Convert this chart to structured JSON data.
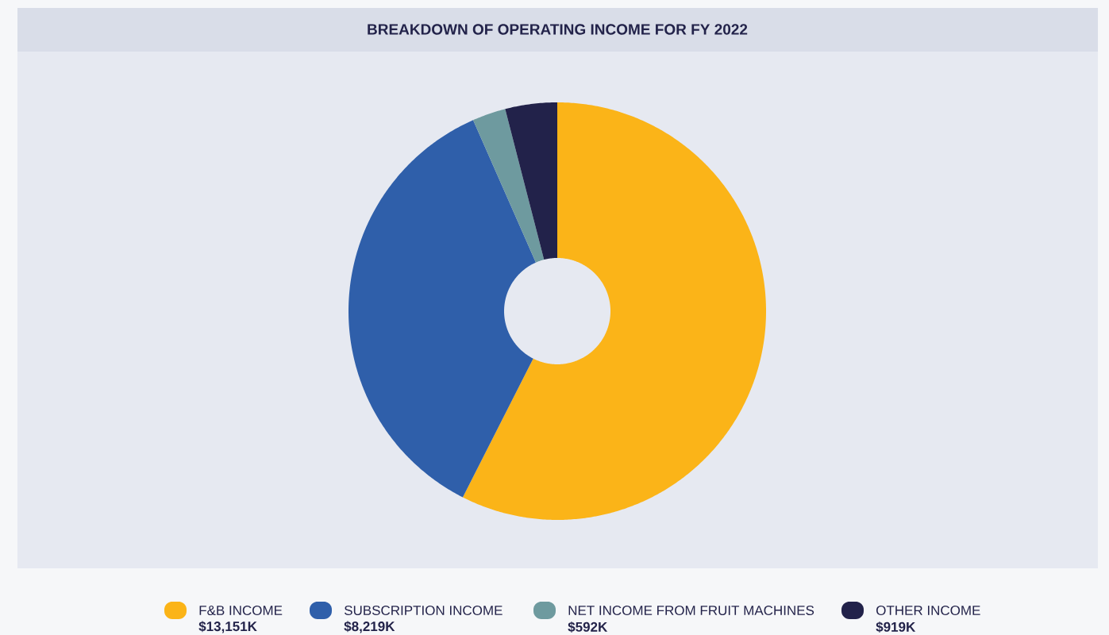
{
  "chart_data": {
    "type": "donut",
    "title": "BREAKDOWN OF OPERATING INCOME FOR FY 2022",
    "categories": [
      "F&B INCOME",
      "SUBSCRIPTION INCOME",
      "NET INCOME FROM FRUIT MACHINES",
      "OTHER INCOME"
    ],
    "values": [
      13151,
      8219,
      592,
      919
    ],
    "value_labels": [
      "$13,151K",
      "$8,219K",
      "$592K",
      "$919K"
    ],
    "colors": [
      "#fbb418",
      "#2f5faa",
      "#6e9a9f",
      "#22224a"
    ],
    "legend": "bottom"
  }
}
